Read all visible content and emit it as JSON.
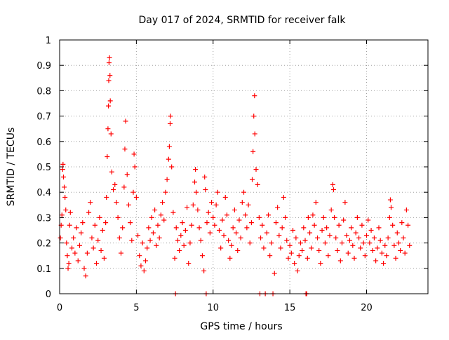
{
  "chart_data": {
    "type": "scatter",
    "title": "Day 017 of 2024, SRMTID for receiver falk",
    "xlabel": "GPS time / hours",
    "ylabel": "SRMTID / TECUs",
    "xlim": [
      0,
      24
    ],
    "ylim": [
      0,
      1
    ],
    "xticks": [
      0,
      5,
      10,
      15,
      20
    ],
    "yticks": [
      0,
      0.1,
      0.2,
      0.3,
      0.4,
      0.5,
      0.6,
      0.7,
      0.8,
      0.9,
      1
    ],
    "xtick_labels": [
      "0",
      "5",
      "10",
      "15",
      "20"
    ],
    "ytick_labels": [
      "0",
      "0.1",
      "0.2",
      "0.3",
      "0.4",
      "0.5",
      "0.6",
      "0.7",
      "0.8",
      "0.9",
      "1"
    ],
    "grid": true,
    "marker": "+",
    "color": "#ff0000",
    "series": [
      {
        "name": "SRMTID",
        "points": [
          [
            0.05,
            0.22
          ],
          [
            0.1,
            0.27
          ],
          [
            0.15,
            0.31
          ],
          [
            0.2,
            0.49
          ],
          [
            0.22,
            0.51
          ],
          [
            0.25,
            0.46
          ],
          [
            0.3,
            0.42
          ],
          [
            0.35,
            0.38
          ],
          [
            0.4,
            0.33
          ],
          [
            0.45,
            0.2
          ],
          [
            0.5,
            0.15
          ],
          [
            0.55,
            0.1
          ],
          [
            0.6,
            0.12
          ],
          [
            0.65,
            0.27
          ],
          [
            0.7,
            0.32
          ],
          [
            0.8,
            0.18
          ],
          [
            0.9,
            0.22
          ],
          [
            1.0,
            0.16
          ],
          [
            1.1,
            0.26
          ],
          [
            1.2,
            0.13
          ],
          [
            1.3,
            0.19
          ],
          [
            1.4,
            0.24
          ],
          [
            1.5,
            0.28
          ],
          [
            1.6,
            0.1
          ],
          [
            1.7,
            0.07
          ],
          [
            1.8,
            0.16
          ],
          [
            1.9,
            0.32
          ],
          [
            2.0,
            0.36
          ],
          [
            2.1,
            0.22
          ],
          [
            2.2,
            0.18
          ],
          [
            2.3,
            0.27
          ],
          [
            2.4,
            0.12
          ],
          [
            2.5,
            0.21
          ],
          [
            2.6,
            0.3
          ],
          [
            2.7,
            0.17
          ],
          [
            2.8,
            0.25
          ],
          [
            2.9,
            0.14
          ],
          [
            3.0,
            0.28
          ],
          [
            3.05,
            0.38
          ],
          [
            3.1,
            0.54
          ],
          [
            3.15,
            0.65
          ],
          [
            3.18,
            0.74
          ],
          [
            3.2,
            0.84
          ],
          [
            3.22,
            0.91
          ],
          [
            3.25,
            0.93
          ],
          [
            3.28,
            0.86
          ],
          [
            3.3,
            0.76
          ],
          [
            3.35,
            0.63
          ],
          [
            3.4,
            0.48
          ],
          [
            3.5,
            0.41
          ],
          [
            3.6,
            0.43
          ],
          [
            3.7,
            0.36
          ],
          [
            3.8,
            0.3
          ],
          [
            3.9,
            0.22
          ],
          [
            4.0,
            0.16
          ],
          [
            4.1,
            0.26
          ],
          [
            4.2,
            0.42
          ],
          [
            4.25,
            0.57
          ],
          [
            4.3,
            0.68
          ],
          [
            4.4,
            0.47
          ],
          [
            4.5,
            0.35
          ],
          [
            4.6,
            0.28
          ],
          [
            4.7,
            0.21
          ],
          [
            4.8,
            0.4
          ],
          [
            4.85,
            0.55
          ],
          [
            4.9,
            0.5
          ],
          [
            5.0,
            0.38
          ],
          [
            5.1,
            0.23
          ],
          [
            5.2,
            0.15
          ],
          [
            5.3,
            0.11
          ],
          [
            5.4,
            0.2
          ],
          [
            5.5,
            0.09
          ],
          [
            5.6,
            0.13
          ],
          [
            5.7,
            0.18
          ],
          [
            5.8,
            0.26
          ],
          [
            5.9,
            0.21
          ],
          [
            6.0,
            0.3
          ],
          [
            6.1,
            0.24
          ],
          [
            6.2,
            0.33
          ],
          [
            6.3,
            0.19
          ],
          [
            6.4,
            0.27
          ],
          [
            6.5,
            0.22
          ],
          [
            6.6,
            0.31
          ],
          [
            6.7,
            0.36
          ],
          [
            6.8,
            0.29
          ],
          [
            6.9,
            0.4
          ],
          [
            7.0,
            0.45
          ],
          [
            7.1,
            0.53
          ],
          [
            7.15,
            0.58
          ],
          [
            7.2,
            0.67
          ],
          [
            7.22,
            0.7
          ],
          [
            7.3,
            0.5
          ],
          [
            7.4,
            0.32
          ],
          [
            7.5,
            0.14
          ],
          [
            7.55,
            0
          ],
          [
            7.6,
            0.26
          ],
          [
            7.7,
            0.21
          ],
          [
            7.8,
            0.17
          ],
          [
            7.9,
            0.23
          ],
          [
            8.0,
            0.28
          ],
          [
            8.1,
            0.19
          ],
          [
            8.2,
            0.25
          ],
          [
            8.3,
            0.34
          ],
          [
            8.4,
            0.12
          ],
          [
            8.5,
            0.2
          ],
          [
            8.6,
            0.27
          ],
          [
            8.7,
            0.35
          ],
          [
            8.8,
            0.44
          ],
          [
            8.85,
            0.49
          ],
          [
            8.9,
            0.4
          ],
          [
            9.0,
            0.33
          ],
          [
            9.1,
            0.26
          ],
          [
            9.2,
            0.21
          ],
          [
            9.3,
            0.15
          ],
          [
            9.4,
            0.09
          ],
          [
            9.45,
            0.46
          ],
          [
            9.5,
            0.41
          ],
          [
            9.55,
            0
          ],
          [
            9.6,
            0.28
          ],
          [
            9.7,
            0.32
          ],
          [
            9.8,
            0.24
          ],
          [
            9.9,
            0.36
          ],
          [
            10.0,
            0.3
          ],
          [
            10.1,
            0.27
          ],
          [
            10.2,
            0.35
          ],
          [
            10.3,
            0.4
          ],
          [
            10.4,
            0.25
          ],
          [
            10.5,
            0.18
          ],
          [
            10.6,
            0.29
          ],
          [
            10.7,
            0.23
          ],
          [
            10.8,
            0.38
          ],
          [
            10.9,
            0.31
          ],
          [
            11.0,
            0.21
          ],
          [
            11.1,
            0.14
          ],
          [
            11.2,
            0.19
          ],
          [
            11.3,
            0.26
          ],
          [
            11.4,
            0.33
          ],
          [
            11.5,
            0.24
          ],
          [
            11.6,
            0.17
          ],
          [
            11.7,
            0.29
          ],
          [
            11.8,
            0.22
          ],
          [
            11.9,
            0.36
          ],
          [
            12.0,
            0.4
          ],
          [
            12.1,
            0.31
          ],
          [
            12.2,
            0.26
          ],
          [
            12.3,
            0.35
          ],
          [
            12.4,
            0.2
          ],
          [
            12.5,
            0.28
          ],
          [
            12.55,
            0.45
          ],
          [
            12.6,
            0.56
          ],
          [
            12.65,
            0.7
          ],
          [
            12.7,
            0.78
          ],
          [
            12.72,
            0.63
          ],
          [
            12.8,
            0.49
          ],
          [
            12.9,
            0.43
          ],
          [
            13.0,
            0.3
          ],
          [
            13.05,
            0
          ],
          [
            13.1,
            0.22
          ],
          [
            13.2,
            0.27
          ],
          [
            13.3,
            0.18
          ],
          [
            13.4,
            0
          ],
          [
            13.5,
            0.24
          ],
          [
            13.6,
            0.31
          ],
          [
            13.7,
            0.15
          ],
          [
            13.8,
            0.2
          ],
          [
            13.9,
            0
          ],
          [
            14.0,
            0.08
          ],
          [
            14.1,
            0.28
          ],
          [
            14.2,
            0.34
          ],
          [
            14.3,
            0.23
          ],
          [
            14.4,
            0.18
          ],
          [
            14.5,
            0.26
          ],
          [
            14.6,
            0.38
          ],
          [
            14.7,
            0.3
          ],
          [
            14.8,
            0.21
          ],
          [
            14.9,
            0.14
          ],
          [
            15.0,
            0.19
          ],
          [
            15.1,
            0.16
          ],
          [
            15.2,
            0.25
          ],
          [
            15.3,
            0.12
          ],
          [
            15.4,
            0.22
          ],
          [
            15.5,
            0.09
          ],
          [
            15.6,
            0.15
          ],
          [
            15.7,
            0.2
          ],
          [
            15.8,
            0.17
          ],
          [
            15.9,
            0.26
          ],
          [
            16.0,
            0.21
          ],
          [
            16.05,
            0
          ],
          [
            16.1,
            0
          ],
          [
            16.15,
            0.14
          ],
          [
            16.2,
            0.3
          ],
          [
            16.3,
            0.24
          ],
          [
            16.4,
            0.18
          ],
          [
            16.5,
            0.31
          ],
          [
            16.6,
            0.27
          ],
          [
            16.7,
            0.36
          ],
          [
            16.8,
            0.22
          ],
          [
            16.9,
            0.17
          ],
          [
            17.0,
            0.12
          ],
          [
            17.1,
            0.25
          ],
          [
            17.2,
            0.3
          ],
          [
            17.3,
            0.2
          ],
          [
            17.4,
            0.26
          ],
          [
            17.5,
            0.15
          ],
          [
            17.6,
            0.23
          ],
          [
            17.7,
            0.33
          ],
          [
            17.8,
            0.43
          ],
          [
            17.85,
            0.41
          ],
          [
            17.9,
            0.3
          ],
          [
            18.0,
            0.22
          ],
          [
            18.1,
            0.17
          ],
          [
            18.2,
            0.27
          ],
          [
            18.3,
            0.13
          ],
          [
            18.4,
            0.2
          ],
          [
            18.5,
            0.29
          ],
          [
            18.6,
            0.36
          ],
          [
            18.7,
            0.23
          ],
          [
            18.8,
            0.16
          ],
          [
            18.9,
            0.21
          ],
          [
            19.0,
            0.26
          ],
          [
            19.1,
            0.19
          ],
          [
            19.2,
            0.14
          ],
          [
            19.3,
            0.24
          ],
          [
            19.4,
            0.3
          ],
          [
            19.5,
            0.22
          ],
          [
            19.6,
            0.18
          ],
          [
            19.7,
            0.27
          ],
          [
            19.8,
            0.2
          ],
          [
            19.9,
            0.15
          ],
          [
            20.0,
            0.23
          ],
          [
            20.1,
            0.29
          ],
          [
            20.2,
            0.2
          ],
          [
            20.3,
            0.25
          ],
          [
            20.4,
            0.17
          ],
          [
            20.5,
            0.22
          ],
          [
            20.6,
            0.13
          ],
          [
            20.7,
            0.18
          ],
          [
            20.8,
            0.26
          ],
          [
            20.9,
            0.21
          ],
          [
            21.0,
            0.16
          ],
          [
            21.1,
            0.12
          ],
          [
            21.2,
            0.19
          ],
          [
            21.3,
            0.15
          ],
          [
            21.4,
            0.22
          ],
          [
            21.5,
            0.3
          ],
          [
            21.55,
            0.37
          ],
          [
            21.6,
            0.34
          ],
          [
            21.7,
            0.27
          ],
          [
            21.8,
            0.19
          ],
          [
            21.9,
            0.14
          ],
          [
            22.0,
            0.24
          ],
          [
            22.1,
            0.2
          ],
          [
            22.2,
            0.17
          ],
          [
            22.3,
            0.28
          ],
          [
            22.4,
            0.22
          ],
          [
            22.5,
            0.16
          ],
          [
            22.6,
            0.33
          ],
          [
            22.7,
            0.27
          ],
          [
            22.8,
            0.19
          ]
        ]
      }
    ]
  }
}
